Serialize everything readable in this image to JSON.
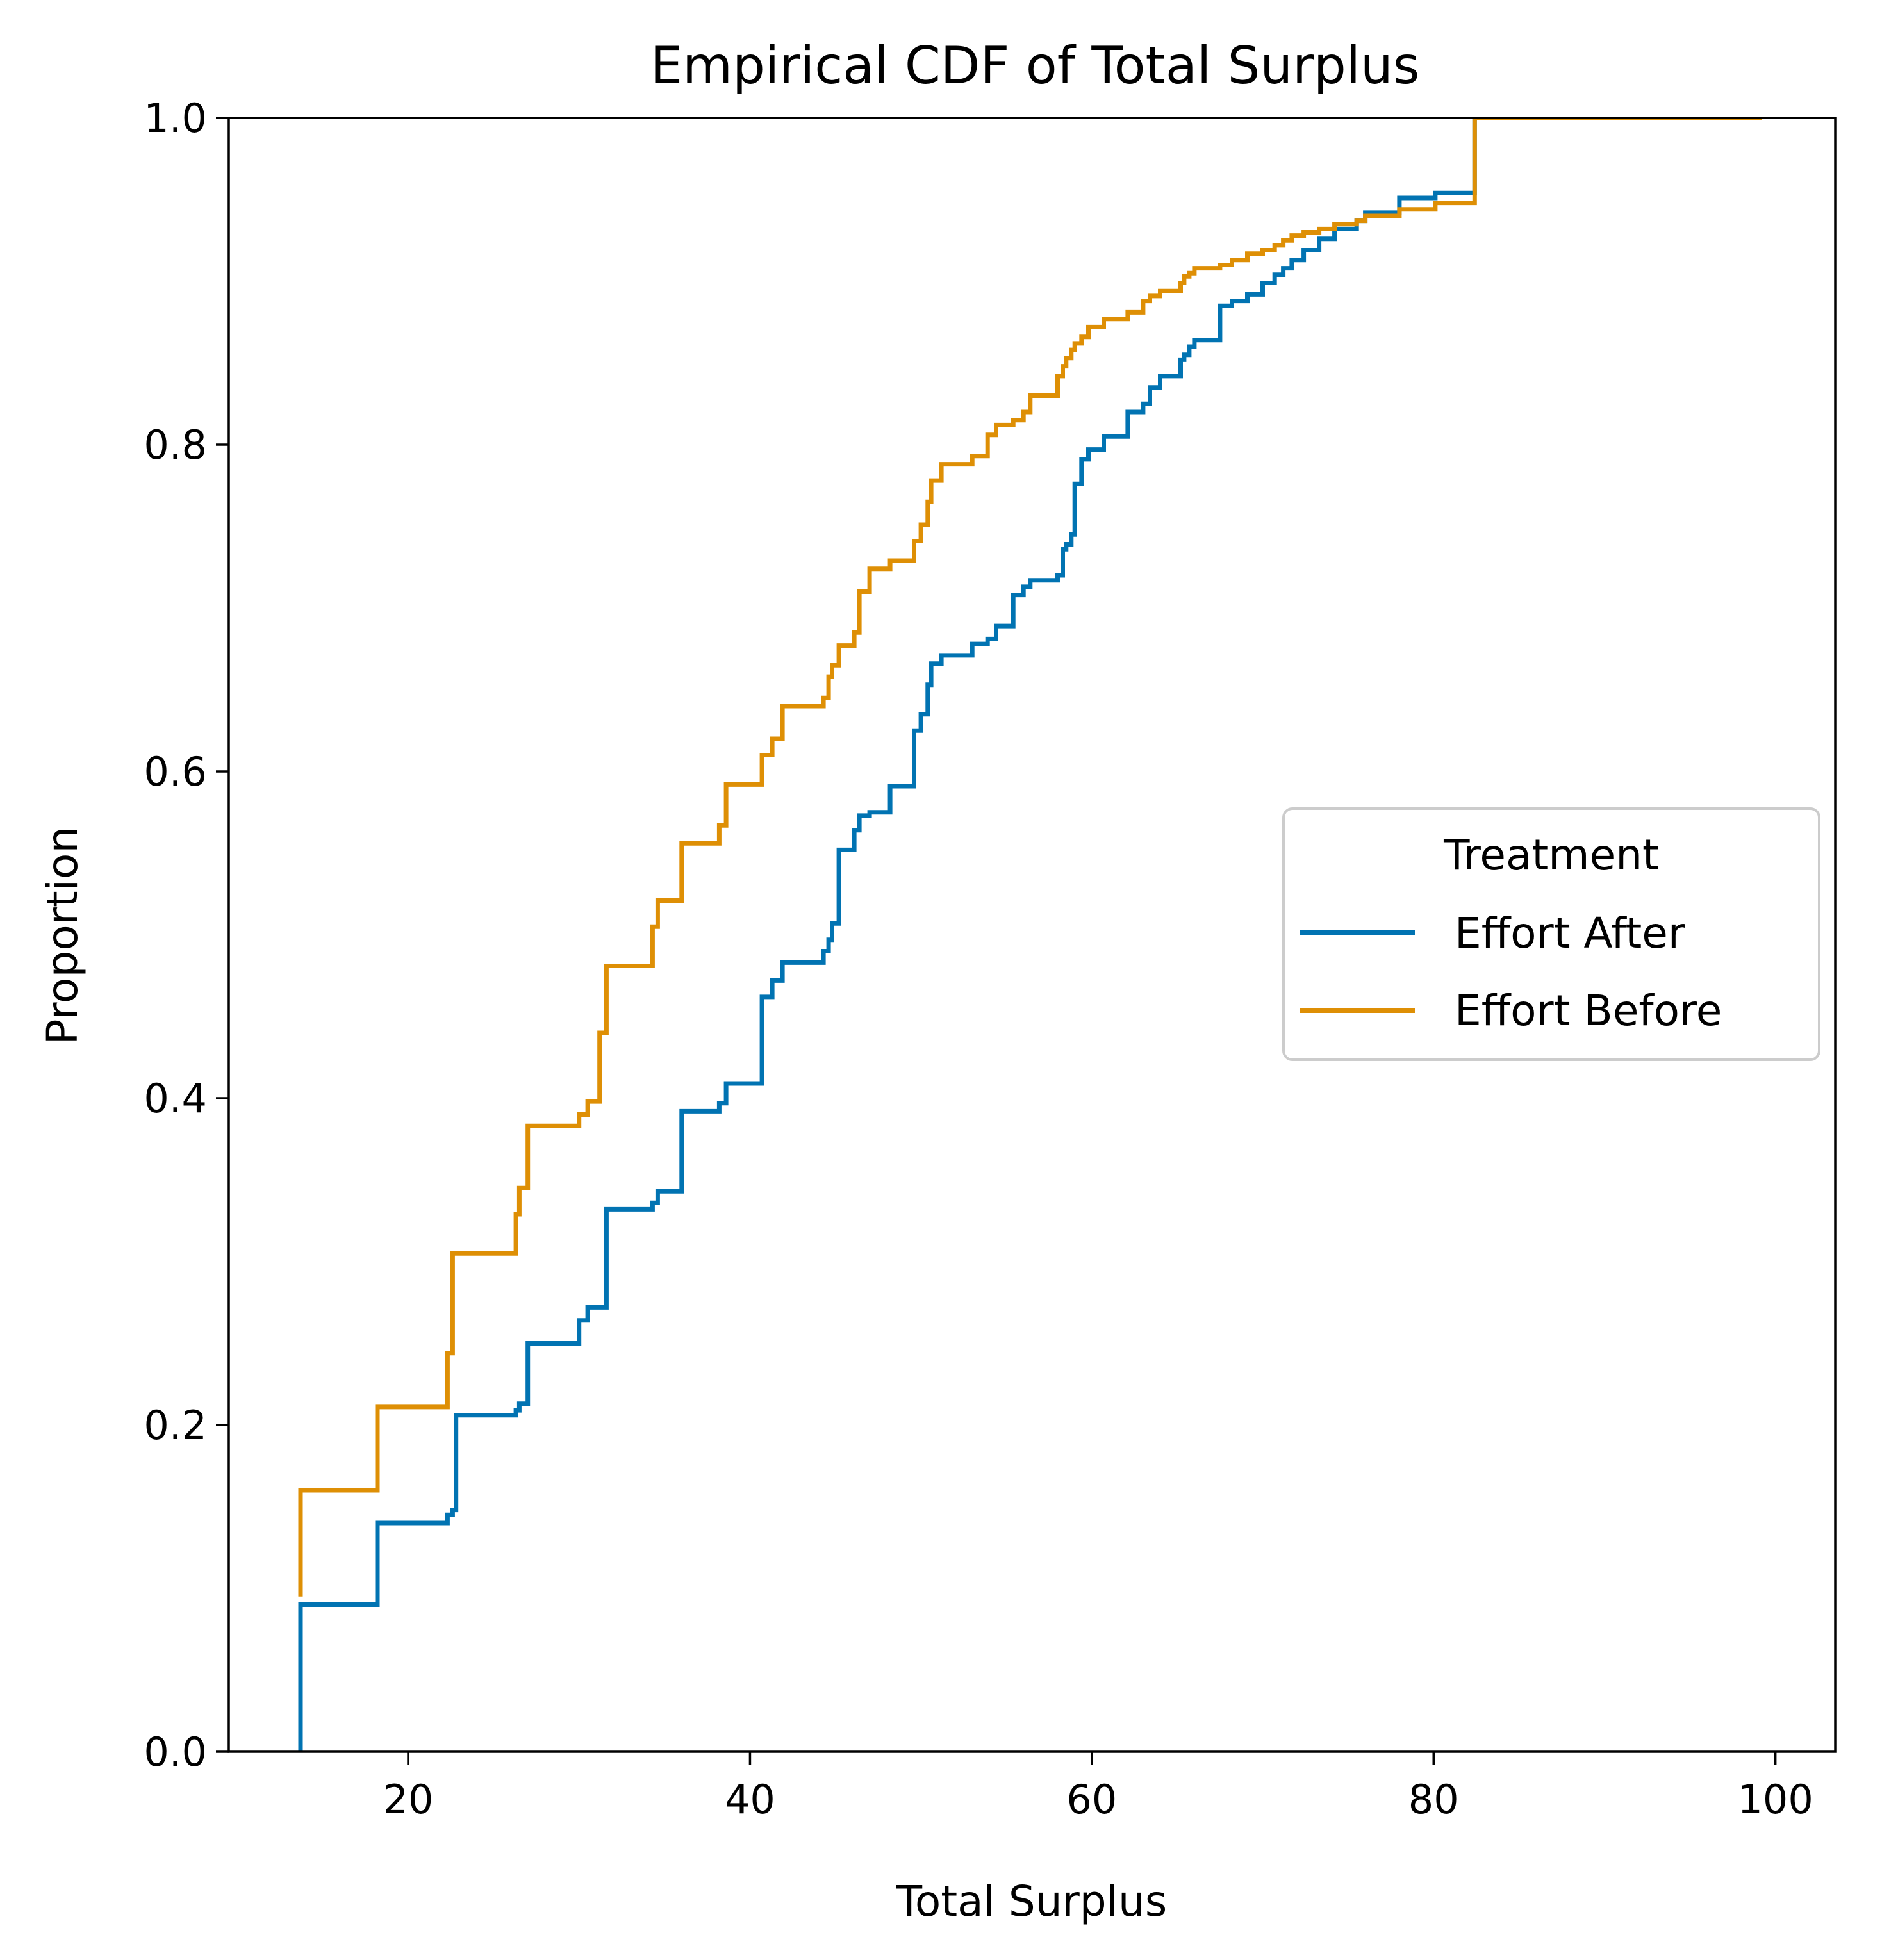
{
  "chart_data": {
    "type": "line",
    "subtype": "ecdf-step",
    "title": "Empirical CDF of Total Surplus",
    "xlabel": "Total Surplus",
    "ylabel": "Proportion",
    "xlim": [
      9.5,
      103.5
    ],
    "ylim": [
      0.0,
      1.0
    ],
    "xticks": [
      20,
      40,
      60,
      80,
      100
    ],
    "yticks": [
      0.0,
      0.2,
      0.4,
      0.6,
      0.8,
      1.0
    ],
    "xtick_labels": [
      "20",
      "40",
      "60",
      "80",
      "100"
    ],
    "ytick_labels": [
      "0.0",
      "0.2",
      "0.4",
      "0.6",
      "0.8",
      "1.0"
    ],
    "grid": false,
    "legend": {
      "title": "Treatment",
      "placement": "center-right"
    },
    "series": [
      {
        "name": "Effort After",
        "color": "#0173b2",
        "x": [
          13.7,
          13.7,
          18.2,
          22.3,
          22.6,
          22.8,
          26.3,
          26.5,
          27.0,
          30.0,
          30.5,
          31.6,
          34.3,
          34.6,
          36.0,
          38.2,
          38.6,
          40.7,
          41.3,
          41.9,
          44.3,
          44.6,
          44.8,
          45.2,
          46.1,
          46.4,
          47.0,
          48.2,
          49.6,
          50.0,
          50.4,
          50.6,
          51.2,
          53.0,
          53.9,
          54.4,
          55.4,
          56.0,
          56.4,
          58.0,
          58.3,
          58.5,
          58.8,
          59.0,
          59.4,
          59.8,
          60.7,
          62.1,
          63.0,
          63.4,
          64.0,
          65.2,
          65.4,
          65.7,
          66.0,
          67.5,
          68.2,
          69.1,
          70.0,
          70.7,
          71.2,
          71.7,
          72.4,
          73.3,
          74.2,
          75.5,
          76.0,
          78.0,
          80.1,
          82.4,
          90.0
        ],
        "y": [
          0.0,
          0.09,
          0.14,
          0.145,
          0.148,
          0.206,
          0.209,
          0.213,
          0.25,
          0.264,
          0.272,
          0.332,
          0.336,
          0.343,
          0.392,
          0.397,
          0.409,
          0.462,
          0.472,
          0.483,
          0.49,
          0.497,
          0.507,
          0.552,
          0.564,
          0.573,
          0.575,
          0.591,
          0.625,
          0.635,
          0.653,
          0.666,
          0.671,
          0.678,
          0.681,
          0.689,
          0.708,
          0.713,
          0.717,
          0.72,
          0.736,
          0.739,
          0.745,
          0.776,
          0.791,
          0.797,
          0.805,
          0.82,
          0.825,
          0.835,
          0.842,
          0.852,
          0.855,
          0.86,
          0.864,
          0.885,
          0.888,
          0.892,
          0.899,
          0.904,
          0.908,
          0.913,
          0.919,
          0.926,
          0.932,
          0.937,
          0.942,
          0.951,
          0.954,
          1.0,
          1.0
        ]
      },
      {
        "name": "Effort Before",
        "color": "#de8f05",
        "x": [
          13.7,
          13.7,
          18.2,
          22.3,
          22.6,
          26.3,
          26.5,
          27.0,
          30.0,
          30.5,
          31.2,
          31.6,
          34.3,
          34.6,
          36.0,
          38.2,
          38.6,
          40.7,
          41.3,
          41.9,
          44.3,
          44.6,
          44.8,
          45.2,
          46.1,
          46.4,
          47.0,
          48.2,
          49.6,
          50.0,
          50.4,
          50.6,
          51.2,
          53.0,
          53.9,
          54.4,
          55.4,
          56.0,
          56.4,
          58.0,
          58.3,
          58.5,
          58.8,
          59.0,
          59.4,
          59.8,
          60.7,
          62.1,
          63.0,
          63.4,
          64.0,
          65.2,
          65.4,
          65.7,
          66.0,
          67.5,
          68.2,
          69.1,
          70.0,
          70.7,
          71.2,
          71.7,
          72.4,
          73.3,
          74.2,
          75.5,
          76.0,
          78.0,
          80.1,
          82.4,
          99.2
        ],
        "y": [
          0.095,
          0.16,
          0.211,
          0.244,
          0.305,
          0.329,
          0.345,
          0.383,
          0.39,
          0.398,
          0.44,
          0.481,
          0.505,
          0.521,
          0.556,
          0.567,
          0.592,
          0.61,
          0.62,
          0.64,
          0.645,
          0.658,
          0.665,
          0.677,
          0.685,
          0.71,
          0.724,
          0.729,
          0.741,
          0.751,
          0.765,
          0.778,
          0.788,
          0.793,
          0.806,
          0.812,
          0.815,
          0.82,
          0.83,
          0.842,
          0.848,
          0.853,
          0.858,
          0.862,
          0.866,
          0.872,
          0.877,
          0.881,
          0.888,
          0.891,
          0.894,
          0.899,
          0.903,
          0.905,
          0.908,
          0.91,
          0.913,
          0.917,
          0.919,
          0.922,
          0.925,
          0.928,
          0.93,
          0.932,
          0.935,
          0.937,
          0.94,
          0.944,
          0.948,
          1.0,
          1.0
        ]
      }
    ]
  }
}
